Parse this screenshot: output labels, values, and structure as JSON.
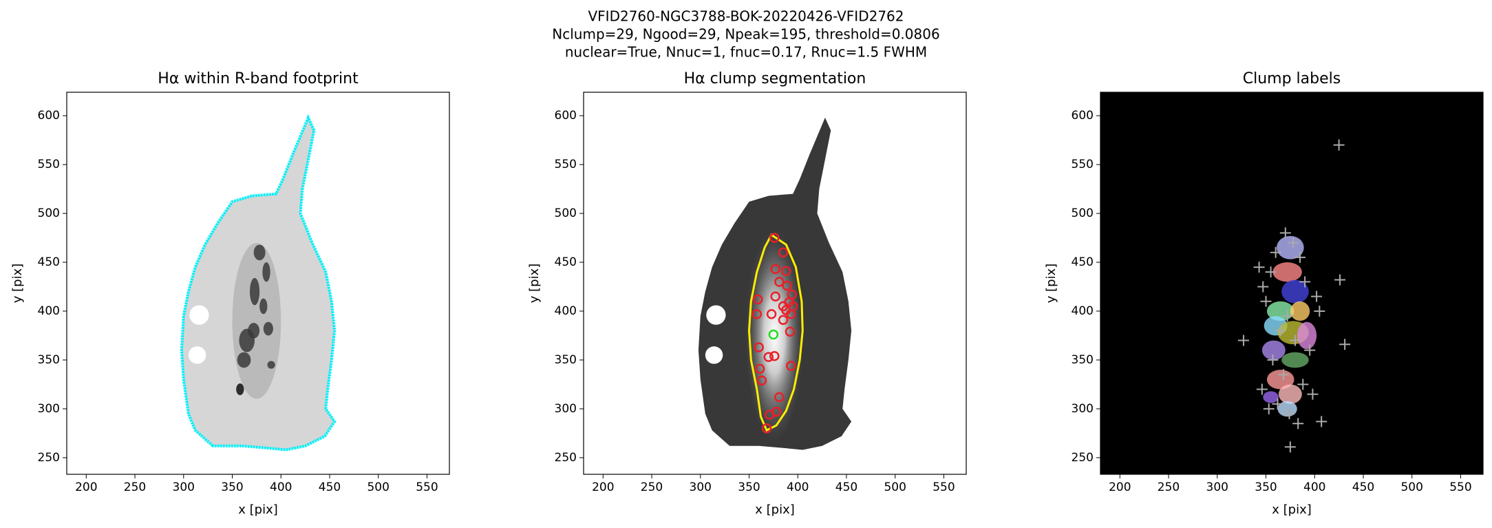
{
  "suptitle": [
    "VFID2760-NGC3788-BOK-20220426-VFID2762",
    "Nclump=29, Ngood=29, Npeak=195, threshold=0.0806",
    "nuclear=True, Nnuc=1, fnuc=0.17, Rnuc=1.5 FWHM"
  ],
  "chart_data": [
    {
      "type": "image",
      "style": "footprint",
      "title": "Hα within R-band footprint",
      "x_label": "x [pix]",
      "y_label": "y [pix]",
      "xlim": [
        180,
        573
      ],
      "ylim": [
        233,
        624
      ],
      "xticks": [
        200,
        250,
        300,
        350,
        400,
        450,
        500,
        550
      ],
      "yticks": [
        250,
        300,
        350,
        400,
        450,
        500,
        550,
        600
      ],
      "series": []
    },
    {
      "type": "image",
      "style": "segmentation",
      "title": "Hα clump segmentation",
      "x_label": "x [pix]",
      "y_label": "y [pix]",
      "xlim": [
        180,
        573
      ],
      "ylim": [
        233,
        624
      ],
      "xticks": [
        200,
        250,
        300,
        350,
        400,
        450,
        500,
        550
      ],
      "yticks": [
        250,
        300,
        350,
        400,
        450,
        500,
        550,
        600
      ],
      "series": [
        {
          "marker": "circle",
          "color": "#e8202a",
          "x": [
            376,
            385,
            377,
            388,
            381,
            389,
            394,
            391,
            377,
            385,
            395,
            388,
            393,
            359,
            358,
            373,
            385,
            392,
            360,
            370,
            376,
            361,
            393,
            363,
            381,
            371,
            378,
            368
          ],
          "y": [
            475,
            460,
            443,
            441,
            430,
            426,
            417,
            409,
            415,
            405,
            405,
            401,
            397,
            412,
            397,
            397,
            391,
            379,
            363,
            353,
            354,
            341,
            344,
            329,
            312,
            294,
            297,
            280
          ]
        },
        {
          "marker": "circle",
          "color": "#22dd22",
          "x": [
            375
          ],
          "y": [
            376
          ]
        }
      ]
    },
    {
      "type": "image",
      "style": "labels",
      "title": "Clump labels",
      "x_label": "x [pix]",
      "y_label": "y [pix]",
      "xlim": [
        180,
        573
      ],
      "ylim": [
        233,
        624
      ],
      "xticks": [
        200,
        250,
        300,
        350,
        400,
        450,
        500,
        550
      ],
      "yticks": [
        250,
        300,
        350,
        400,
        450,
        500,
        550,
        600
      ],
      "series": [
        {
          "marker": "plus",
          "color": "#aaaaaa",
          "x": [
            425,
            426,
            431,
            327,
            343,
            347,
            407,
            375,
            405,
            402,
            370,
            378,
            360,
            385,
            355,
            390,
            350,
            372,
            365,
            380,
            395,
            357,
            368,
            388,
            346,
            362,
            374,
            383,
            353,
            398
          ],
          "y": [
            570,
            432,
            366,
            370,
            445,
            425,
            287,
            261,
            400,
            415,
            480,
            470,
            460,
            455,
            440,
            430,
            410,
            395,
            380,
            370,
            360,
            350,
            335,
            325,
            320,
            305,
            295,
            285,
            300,
            315
          ]
        }
      ]
    }
  ]
}
